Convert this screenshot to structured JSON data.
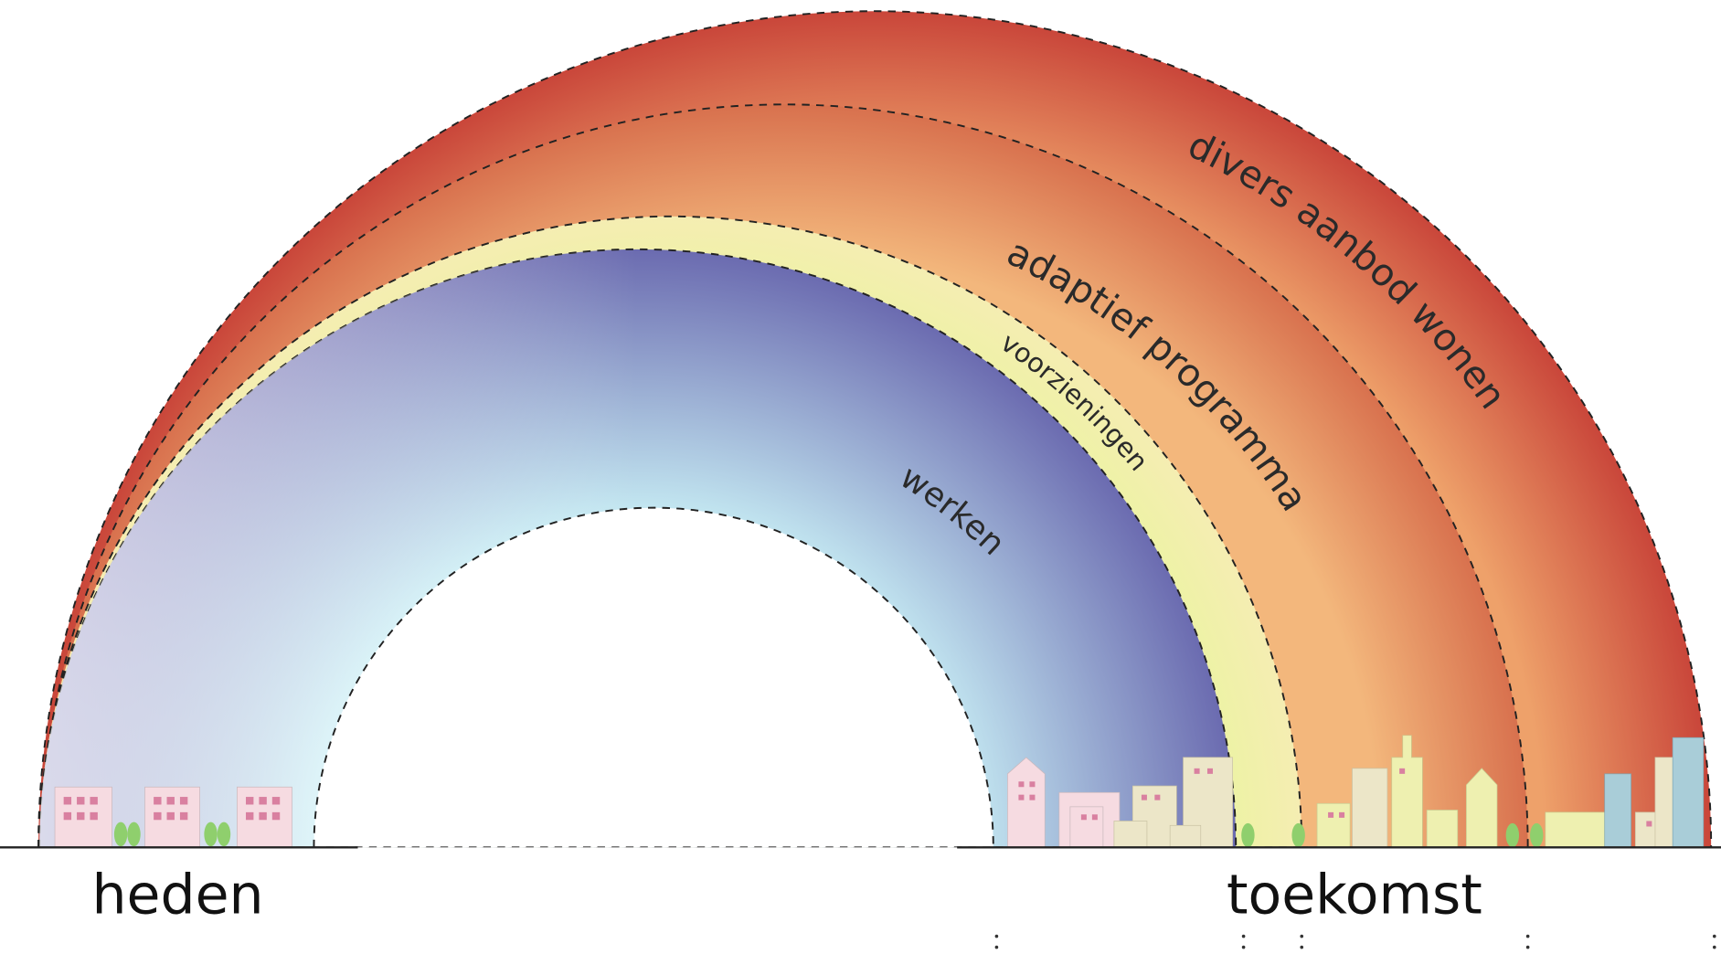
{
  "bands": [
    "divers aanbod wonen",
    "adaptief programma",
    "voorzieningen",
    "werken"
  ],
  "start": "heden",
  "end": "toekomst"
}
